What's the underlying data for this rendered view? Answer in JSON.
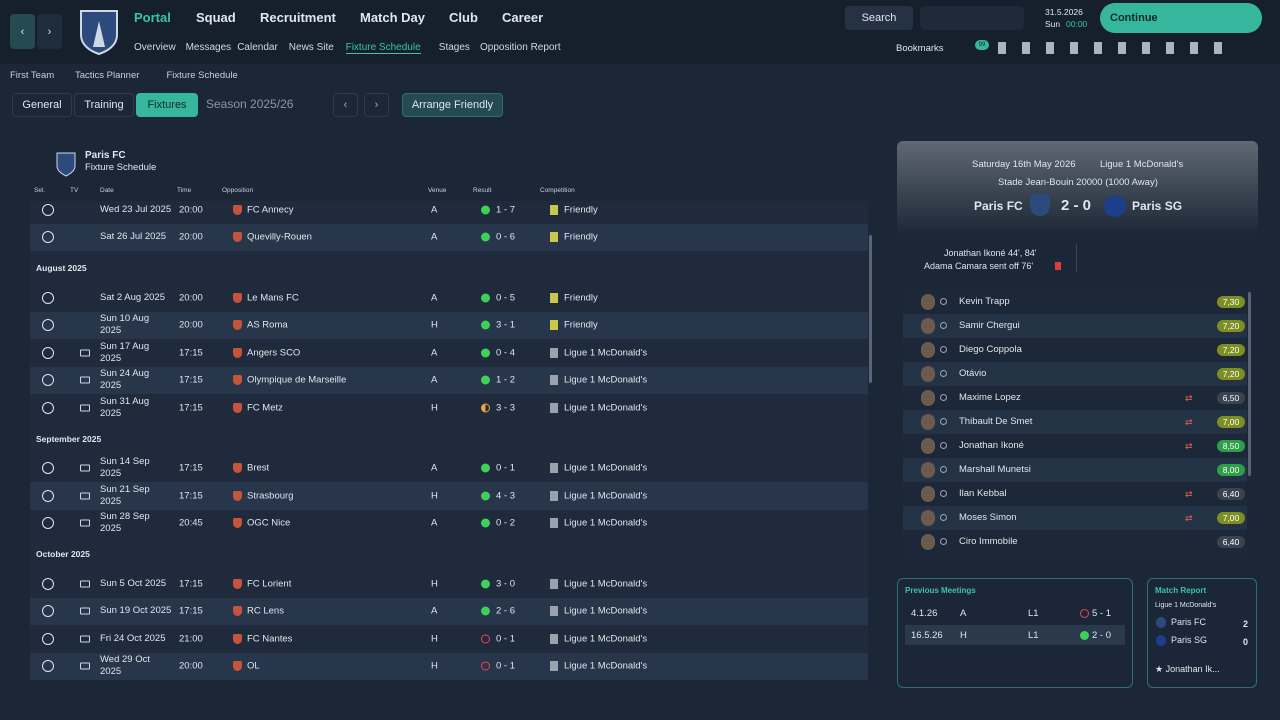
{
  "nav": {
    "menus": [
      "Portal",
      "Squad",
      "Recruitment",
      "Match Day",
      "Club",
      "Career"
    ],
    "submenu": [
      "Overview",
      "Messages",
      "Calendar",
      "News Site",
      "Fixture Schedule",
      "Stages",
      "Opposition Report"
    ],
    "search": "Search",
    "date": "31.5.2026",
    "weekday": "Sun",
    "time": "00:00",
    "continue": "Continue",
    "bookmarks": "Bookmarks",
    "badge": "99"
  },
  "breadcrumb": [
    "First Team",
    "Tactics Planner",
    "Fixture Schedule"
  ],
  "tabs": [
    "General",
    "Training",
    "Fixtures"
  ],
  "season": "Season 2025/26",
  "arrange": "Arrange Friendly",
  "schedule": {
    "club": "Paris FC",
    "subtitle": "Fixture Schedule",
    "columns": [
      "Sel.",
      "TV",
      "Date",
      "Time",
      "Opposition",
      "Venue",
      "Result",
      "Competition"
    ],
    "groups": [
      {
        "fixtures": [
          {
            "date": "Wed 23 Jul 2025",
            "time": "20:00",
            "opposition": "FC Annecy",
            "venue": "A",
            "result": "1 - 7",
            "competition": "Friendly",
            "tv": false,
            "result_marker": "filled-green"
          },
          {
            "date": "Sat 26 Jul 2025",
            "time": "20:00",
            "opposition": "Quevilly-Rouen",
            "venue": "A",
            "result": "0 - 6",
            "competition": "Friendly",
            "tv": false,
            "result_marker": "filled-green"
          }
        ]
      },
      {
        "month": "August 2025",
        "fixtures": [
          {
            "date": "Sat 2 Aug 2025",
            "time": "20:00",
            "opposition": "Le Mans FC",
            "venue": "A",
            "result": "0 - 5",
            "competition": "Friendly",
            "tv": false,
            "result_marker": "filled-green"
          },
          {
            "date": "Sun 10 Aug 2025",
            "time": "20:00",
            "opposition": "AS Roma",
            "venue": "H",
            "result": "3 - 1",
            "competition": "Friendly",
            "tv": false,
            "result_marker": "filled-green"
          },
          {
            "date": "Sun 17 Aug 2025",
            "time": "17:15",
            "opposition": "Angers SCO",
            "venue": "A",
            "result": "0 - 4",
            "competition": "Ligue 1 McDonald's",
            "tv": true,
            "result_marker": "filled-green"
          },
          {
            "date": "Sun 24 Aug 2025",
            "time": "17:15",
            "opposition": "Olympique de Marseille",
            "venue": "A",
            "result": "1 - 2",
            "competition": "Ligue 1 McDonald's",
            "tv": true,
            "result_marker": "filled-green"
          },
          {
            "date": "Sun 31 Aug 2025",
            "time": "17:15",
            "opposition": "FC Metz",
            "venue": "H",
            "result": "3 - 3",
            "competition": "Ligue 1 McDonald's",
            "tv": true,
            "result_marker": "half-orange"
          }
        ]
      },
      {
        "month": "September 2025",
        "fixtures": [
          {
            "date": "Sun 14 Sep 2025",
            "time": "17:15",
            "opposition": "Brest",
            "venue": "A",
            "result": "0 - 1",
            "competition": "Ligue 1 McDonald's",
            "tv": true,
            "result_marker": "filled-green"
          },
          {
            "date": "Sun 21 Sep 2025",
            "time": "17:15",
            "opposition": "Strasbourg",
            "venue": "H",
            "result": "4 - 3",
            "competition": "Ligue 1 McDonald's",
            "tv": true,
            "result_marker": "filled-green"
          },
          {
            "date": "Sun 28 Sep 2025",
            "time": "20:45",
            "opposition": "OGC Nice",
            "venue": "A",
            "result": "0 - 2",
            "competition": "Ligue 1 McDonald's",
            "tv": true,
            "result_marker": "filled-green"
          }
        ]
      },
      {
        "month": "October 2025",
        "fixtures": [
          {
            "date": "Sun 5 Oct 2025",
            "time": "17:15",
            "opposition": "FC Lorient",
            "venue": "H",
            "result": "3 - 0",
            "competition": "Ligue 1 McDonald's",
            "tv": true,
            "result_marker": "filled-green"
          },
          {
            "date": "Sun 19 Oct 2025",
            "time": "17:15",
            "opposition": "RC Lens",
            "venue": "A",
            "result": "2 - 6",
            "competition": "Ligue 1 McDonald's",
            "tv": true,
            "result_marker": "filled-green"
          },
          {
            "date": "Fri 24 Oct 2025",
            "time": "21:00",
            "opposition": "FC Nantes",
            "venue": "H",
            "result": "0 - 1",
            "competition": "Ligue 1 McDonald's",
            "tv": true,
            "result_marker": "ring-red"
          },
          {
            "date": "Wed 29 Oct 2025",
            "time": "20:00",
            "opposition": "OL",
            "venue": "H",
            "result": "0 - 1",
            "competition": "Ligue 1 McDonald's",
            "tv": true,
            "result_marker": "ring-red"
          }
        ]
      }
    ]
  },
  "match": {
    "date": "Saturday 16th May 2026",
    "competition": "Ligue 1 McDonald's",
    "stadium": "Stade Jean-Bouin 20000 (1000 Away)",
    "home": "Paris FC",
    "score": "2 - 0",
    "away": "Paris SG",
    "events": [
      "Jonathan Ikoné 44', 84'",
      "Adama Camara sent off 76'"
    ],
    "players": [
      {
        "name": "Kevin Trapp",
        "rating": "7,30",
        "rating_color": "#7d8f22",
        "sub": false
      },
      {
        "name": "Samir Chergui",
        "rating": "7,20",
        "rating_color": "#7d8f22",
        "sub": false
      },
      {
        "name": "Diego Coppola",
        "rating": "7,20",
        "rating_color": "#7d8f22",
        "sub": false
      },
      {
        "name": "Otávio",
        "rating": "7,20",
        "rating_color": "#7d8f22",
        "sub": false
      },
      {
        "name": "Maxime Lopez",
        "rating": "6,50",
        "rating_color": "#3a4350",
        "sub": true
      },
      {
        "name": "Thibault De Smet",
        "rating": "7,00",
        "rating_color": "#7d8f22",
        "sub": true
      },
      {
        "name": "Jonathan Ikoné",
        "rating": "8,50",
        "rating_color": "#2f9e48",
        "sub": true
      },
      {
        "name": "Marshall Munetsi",
        "rating": "8,00",
        "rating_color": "#2f9e48",
        "sub": false
      },
      {
        "name": "Ilan Kebbal",
        "rating": "6,40",
        "rating_color": "#3a4350",
        "sub": true
      },
      {
        "name": "Moses Simon",
        "rating": "7,00",
        "rating_color": "#7d8f22",
        "sub": true
      },
      {
        "name": "Ciro Immobile",
        "rating": "6,40",
        "rating_color": "#3a4350",
        "sub": false
      }
    ]
  },
  "previous": {
    "title": "Previous Meetings",
    "rows": [
      {
        "date": "4.1.26",
        "venue": "A",
        "competition": "L1",
        "result": "5 - 1",
        "result_marker": "ring-red"
      },
      {
        "date": "16.5.26",
        "venue": "H",
        "competition": "L1",
        "result": "2 - 0",
        "result_marker": "filled-green"
      }
    ]
  },
  "report": {
    "title": "Match Report",
    "competition": "Ligue 1 McDonald's",
    "teams": [
      {
        "name": "Paris FC",
        "goals": "2"
      },
      {
        "name": "Paris SG",
        "goals": "0"
      }
    ],
    "star": "Jonathan Ik..."
  }
}
